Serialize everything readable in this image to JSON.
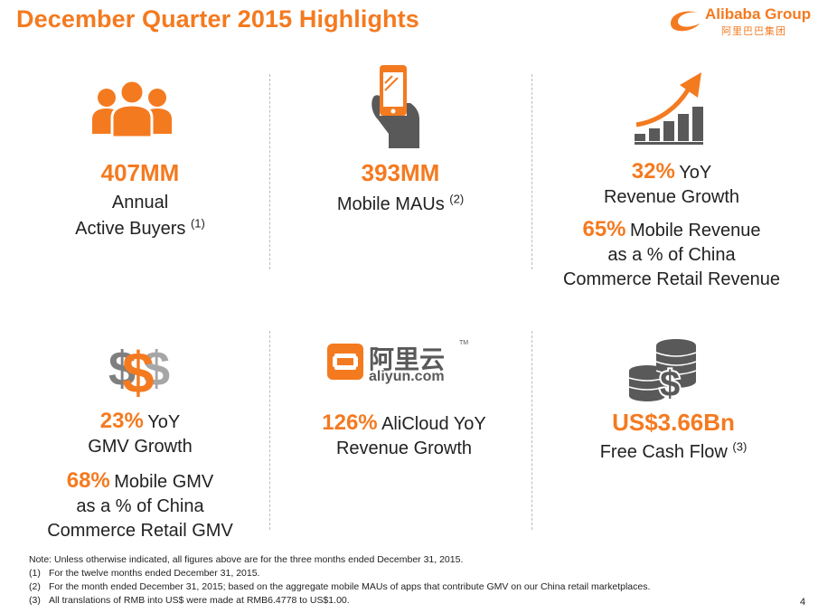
{
  "header": {
    "title": "December Quarter 2015 Highlights",
    "logo_text": "Alibaba Group",
    "logo_cn": "阿里巴巴集团"
  },
  "brand": {
    "accent": "#F47A20",
    "icon_gray": "#595959"
  },
  "metrics": {
    "buyers": {
      "value": "407MM",
      "line1": "Annual",
      "line2": "Active Buyers",
      "note": "(1)",
      "icon": "users-icon"
    },
    "mobile": {
      "value": "393MM",
      "label": "Mobile MAUs",
      "note": "(2)",
      "icon": "smartphone-icon"
    },
    "revenue": {
      "value": "32%",
      "suffix": "YoY",
      "line2": "Revenue Growth",
      "mobile_value": "65%",
      "mobile_suffix": "Mobile Revenue",
      "mobile_line2": "as  a % of China",
      "mobile_line3": "Commerce Retail Revenue",
      "icon": "growth-chart-icon"
    },
    "gmv": {
      "value": "23%",
      "suffix": "YoY",
      "line2": "GMV Growth",
      "mobile_value": "68%",
      "mobile_suffix": "Mobile GMV",
      "mobile_line2": "as a % of China",
      "mobile_line3": "Commerce Retail GMV",
      "icon": "dollar-signs-icon"
    },
    "alicloud": {
      "value": "126%",
      "suffix": "AliCloud YoY",
      "line2": "Revenue Growth",
      "logo_cn": "阿里云",
      "logo_en": "aliyun.com",
      "logo_tm": "TM",
      "icon": "aliyun-logo-icon"
    },
    "cashflow": {
      "value": "US$3.66Bn",
      "label": "Free Cash Flow",
      "note": "(3)",
      "icon": "coins-icon"
    }
  },
  "footnotes": {
    "intro": "Note: Unless otherwise indicated, all figures above are for the three months ended December 31, 2015.",
    "items": [
      {
        "num": "(1)",
        "text": "For the twelve months ended December 31, 2015."
      },
      {
        "num": "(2)",
        "text": "For the month ended December 31, 2015; based on the aggregate mobile MAUs of apps that contribute GMV on our China retail marketplaces."
      },
      {
        "num": "(3)",
        "text": "All translations of RMB into US$ were made at RMB6.4778 to US$1.00."
      }
    ]
  },
  "page_number": "4"
}
